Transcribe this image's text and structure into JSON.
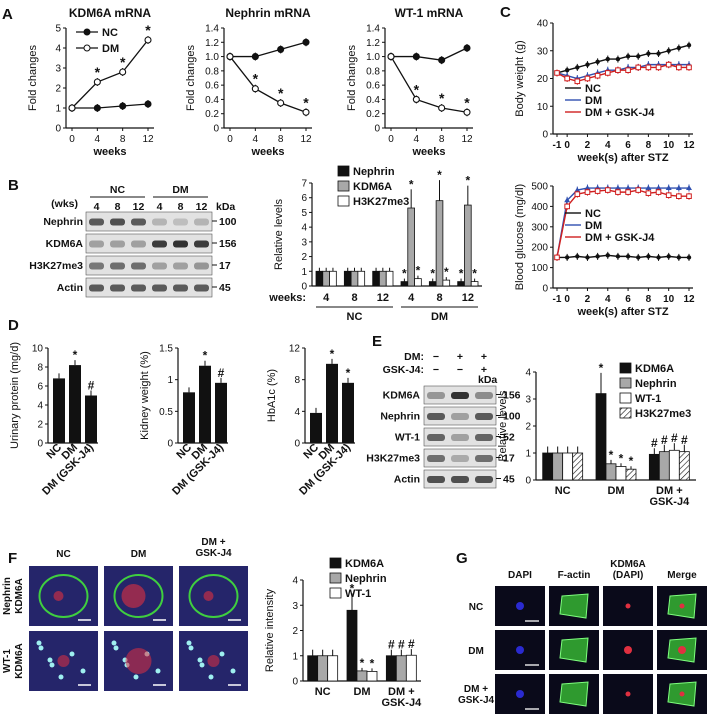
{
  "panels": {
    "A": {
      "label": "A",
      "legend": [
        {
          "name": "NC",
          "style": "filled"
        },
        {
          "name": "DM",
          "style": "open"
        }
      ],
      "charts": [
        {
          "title": "KDM6A mRNA",
          "ylabel": "Fold changes",
          "xlabel": "weeks",
          "x": [
            0,
            4,
            8,
            12
          ],
          "ylim": [
            0,
            5
          ],
          "yticks": [
            "0",
            "1",
            "2",
            "3",
            "4",
            "5"
          ],
          "xticks": [
            "0",
            "4",
            "8",
            "12"
          ],
          "series": [
            {
              "name": "NC",
              "values": [
                1,
                1.0,
                1.1,
                1.2
              ]
            },
            {
              "name": "DM",
              "values": [
                1,
                2.3,
                2.8,
                4.4
              ]
            }
          ],
          "star_points": [
            1,
            2,
            3
          ]
        },
        {
          "title": "Nephrin mRNA",
          "ylabel": "Fold changes",
          "xlabel": "weeks",
          "x": [
            0,
            4,
            8,
            12
          ],
          "ylim": [
            0,
            1.4
          ],
          "yticks": [
            "0",
            "0.2",
            "0.4",
            "0.6",
            "0.8",
            "1.0",
            "1.2",
            "1.4"
          ],
          "xticks": [
            "0",
            "4",
            "8",
            "12"
          ],
          "series": [
            {
              "name": "NC",
              "values": [
                1,
                1.0,
                1.1,
                1.2
              ]
            },
            {
              "name": "DM",
              "values": [
                1,
                0.55,
                0.35,
                0.22
              ]
            }
          ],
          "star_points": [
            1,
            2,
            3
          ]
        },
        {
          "title": "WT-1 mRNA",
          "ylabel": "Fold changes",
          "xlabel": "weeks",
          "x": [
            0,
            4,
            8,
            12
          ],
          "ylim": [
            0,
            1.4
          ],
          "yticks": [
            "0",
            "0.2",
            "0.4",
            "0.6",
            "0.8",
            "1.0",
            "1.2",
            "1.4"
          ],
          "xticks": [
            "0",
            "4",
            "8",
            "12"
          ],
          "series": [
            {
              "name": "NC",
              "values": [
                1,
                1.0,
                0.95,
                1.12
              ]
            },
            {
              "name": "DM",
              "values": [
                1,
                0.4,
                0.28,
                0.22
              ]
            }
          ],
          "star_points": [
            1,
            2,
            3
          ]
        }
      ]
    },
    "B": {
      "label": "B",
      "blot": {
        "group_labels": [
          "NC",
          "DM"
        ],
        "wks_label": "(wks)",
        "lanes": [
          "4",
          "8",
          "12",
          "4",
          "8",
          "12"
        ],
        "kda_label": "kDa",
        "rows": [
          {
            "name": "Nephrin",
            "kda": "100"
          },
          {
            "name": "KDM6A",
            "kda": "156"
          },
          {
            "name": "H3K27me3",
            "kda": "17"
          },
          {
            "name": "Actin",
            "kda": "45"
          }
        ]
      },
      "chart": {
        "type": "bar",
        "ylabel": "Relative levels",
        "ylim": [
          0,
          7
        ],
        "yticks": [
          "0",
          "1",
          "2",
          "3",
          "4",
          "5",
          "6",
          "7"
        ],
        "weeks_label": "weeks:",
        "categories": [
          "4",
          "8",
          "12",
          "4",
          "8",
          "12"
        ],
        "groups": [
          "NC",
          "DM"
        ],
        "series": [
          {
            "name": "Nephrin",
            "values": [
              1,
              1,
              1,
              0.3,
              0.3,
              0.3
            ]
          },
          {
            "name": "KDM6A",
            "values": [
              1,
              1,
              1,
              5.3,
              5.8,
              5.5
            ]
          },
          {
            "name": "H3K27me3",
            "values": [
              1,
              1,
              1,
              0.5,
              0.4,
              0.3
            ]
          }
        ]
      }
    },
    "C": {
      "label": "C",
      "legend": [
        "NC",
        "DM",
        "DM + GSK-J4"
      ],
      "weight": {
        "ylabel": "Body weight (g)",
        "xlabel": "week(s) after STZ",
        "ylim": [
          0,
          40
        ],
        "yticks": [
          "0",
          "10",
          "20",
          "30",
          "40"
        ],
        "xticks": [
          "-1",
          "0",
          "2",
          "4",
          "6",
          "8",
          "10",
          "12"
        ],
        "x": [
          -1,
          0,
          1,
          2,
          3,
          4,
          5,
          6,
          7,
          8,
          9,
          10,
          11,
          12
        ],
        "series": [
          {
            "name": "NC",
            "values": [
              22,
              23,
              24,
              25,
              26,
              27,
              27,
              28,
              28,
              29,
              29,
              30,
              31,
              32
            ]
          },
          {
            "name": "DM",
            "values": [
              22,
              21,
              20,
              21,
              22,
              23,
              23,
              24,
              24,
              25,
              25,
              25,
              25,
              25
            ]
          },
          {
            "name": "DM + GSK-J4",
            "values": [
              22,
              20,
              19,
              20,
              21,
              22,
              23,
              23,
              24,
              24,
              24,
              25,
              24,
              24
            ]
          }
        ]
      },
      "glucose": {
        "ylabel": "Blood glucose (mg/dl)",
        "xlabel": "week(s) after STZ",
        "ylim": [
          0,
          500
        ],
        "yticks": [
          "0",
          "100",
          "200",
          "300",
          "400",
          "500"
        ],
        "xticks": [
          "-1",
          "0",
          "2",
          "4",
          "6",
          "8",
          "10",
          "12"
        ],
        "x": [
          -1,
          0,
          1,
          2,
          3,
          4,
          5,
          6,
          7,
          8,
          9,
          10,
          11,
          12
        ],
        "series": [
          {
            "name": "NC",
            "values": [
              150,
              150,
              155,
              150,
              155,
              160,
              155,
              155,
              150,
              155,
              150,
              155,
              150,
              150
            ]
          },
          {
            "name": "DM",
            "values": [
              150,
              430,
              480,
              490,
              490,
              490,
              490,
              490,
              490,
              490,
              490,
              490,
              490,
              490
            ]
          },
          {
            "name": "DM + GSK-J4",
            "values": [
              150,
              400,
              460,
              470,
              475,
              480,
              470,
              470,
              480,
              465,
              470,
              455,
              450,
              450
            ]
          }
        ]
      }
    },
    "D": {
      "label": "D",
      "charts": [
        {
          "ylabel": "Urinary protein (mg/d)",
          "ylim": [
            0,
            10
          ],
          "yticks": [
            "0",
            "2",
            "4",
            "6",
            "8",
            "10"
          ],
          "categories": [
            "NC",
            "DM",
            "DM (GSK-J4)"
          ],
          "values": [
            6.8,
            8.2,
            5.0
          ],
          "marks": [
            "",
            "*",
            "#"
          ]
        },
        {
          "ylabel": "Kidney weight (%)",
          "ylim": [
            0,
            1.5
          ],
          "yticks": [
            "0",
            "0.5",
            "1",
            "1.5"
          ],
          "categories": [
            "NC",
            "DM",
            "DM (GSK-J4)"
          ],
          "values": [
            0.8,
            1.22,
            0.95
          ],
          "marks": [
            "",
            "*",
            "#"
          ]
        },
        {
          "ylabel": "HbA1c (%)",
          "ylim": [
            0,
            12
          ],
          "yticks": [
            "0",
            "4",
            "8",
            "12"
          ],
          "categories": [
            "NC",
            "DM",
            "DM (GSK-J4)"
          ],
          "values": [
            3.8,
            10.0,
            7.6
          ],
          "marks": [
            "",
            "*",
            "*"
          ]
        }
      ]
    },
    "E": {
      "label": "E",
      "blot": {
        "dm_label": "DM:",
        "gsk_label": "GSK-J4:",
        "dm_signs": [
          "−",
          "+",
          "+"
        ],
        "gsk_signs": [
          "−",
          "−",
          "+"
        ],
        "kda_label": "kDa",
        "rows": [
          {
            "name": "KDM6A",
            "kda": "156"
          },
          {
            "name": "Nephrin",
            "kda": "100"
          },
          {
            "name": "WT-1",
            "kda": "52"
          },
          {
            "name": "H3K27me3",
            "kda": "17"
          },
          {
            "name": "Actin",
            "kda": "45"
          }
        ]
      },
      "chart": {
        "type": "bar",
        "ylabel": "Relative levels",
        "ylim": [
          0,
          4
        ],
        "yticks": [
          "0",
          "1",
          "2",
          "3",
          "4"
        ],
        "categories": [
          "NC",
          "DM",
          "DM + GSK-J4"
        ],
        "series": [
          {
            "name": "KDM6A",
            "values": [
              1,
              3.2,
              0.95
            ]
          },
          {
            "name": "Nephrin",
            "values": [
              1,
              0.6,
              1.05
            ]
          },
          {
            "name": "WT-1",
            "values": [
              1,
              0.5,
              1.1
            ]
          },
          {
            "name": "H3K27me3",
            "values": [
              1,
              0.4,
              1.05
            ]
          }
        ]
      }
    },
    "F": {
      "label": "F",
      "col_labels": [
        "NC",
        "DM",
        "DM + GSK-J4"
      ],
      "row1_labels": [
        "Nephrin",
        "KDM6A"
      ],
      "row2_labels": [
        "WT-1",
        "KDM6A"
      ],
      "chart": {
        "type": "bar",
        "ylabel": "Relative intensity",
        "ylim": [
          0,
          4
        ],
        "yticks": [
          "0",
          "1",
          "2",
          "3",
          "4"
        ],
        "categories": [
          "NC",
          "DM",
          "DM + GSK-J4"
        ],
        "series": [
          {
            "name": "KDM6A",
            "values": [
              1,
              2.8,
              1.0
            ]
          },
          {
            "name": "Nephrin",
            "values": [
              1,
              0.4,
              1.0
            ]
          },
          {
            "name": "WT-1",
            "values": [
              1,
              0.38,
              1.02
            ]
          }
        ]
      }
    },
    "G": {
      "label": "G",
      "col_labels": [
        "DAPI",
        "F-actin",
        "KDM6A (DAPI)",
        "Merge"
      ],
      "row_labels": [
        "NC",
        "DM",
        "DM + GSK-J4"
      ]
    }
  },
  "colors": {
    "nc": "#111111",
    "dm": "#3050b0",
    "gsk": "#d02020",
    "gray": "#a8a8a8",
    "nephrin_green": "#3fcf3f",
    "kdm6a_red": "#e03040",
    "dapi": "#2a2ad0"
  }
}
